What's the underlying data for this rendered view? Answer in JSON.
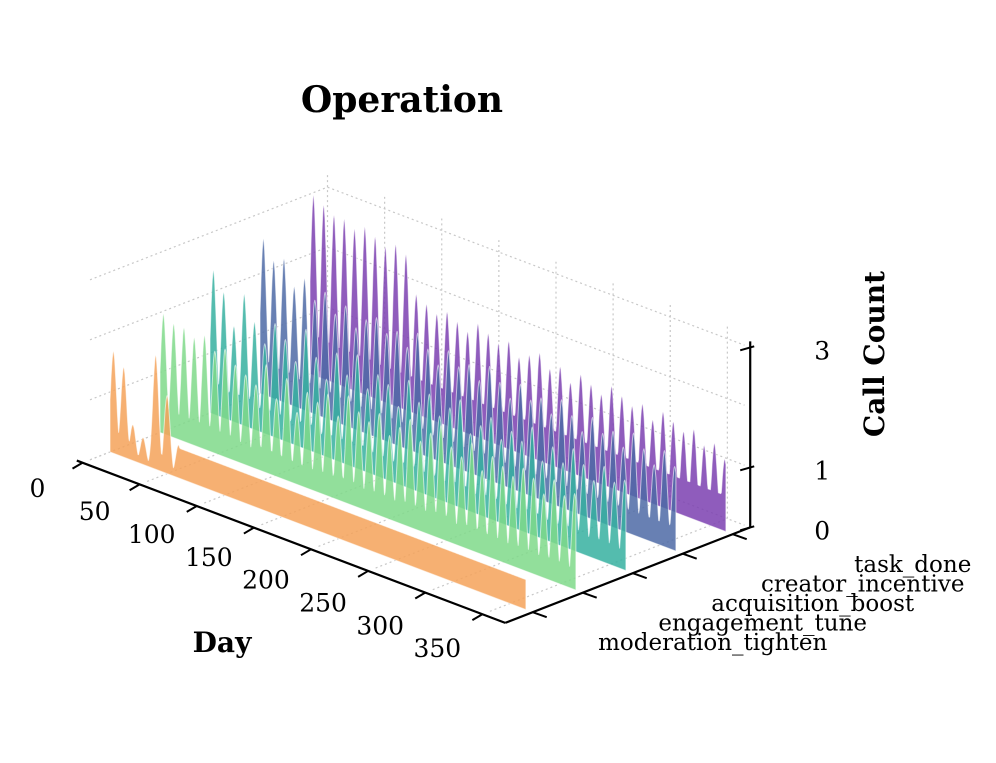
{
  "chart_data": {
    "type": "3d-ridgeline-area",
    "title": "Operation",
    "xlabel": "Day",
    "zlabel": "Call Count",
    "xlim": [
      0,
      365
    ],
    "zlim": [
      0,
      3
    ],
    "x_ticks": [
      0,
      50,
      100,
      150,
      200,
      250,
      300,
      350
    ],
    "z_ticks": [
      0,
      1,
      3
    ],
    "categories": [
      "moderation_tighten",
      "engagement_tune",
      "acquisition_boost",
      "creator_incentive",
      "task_done"
    ],
    "series": [
      {
        "name": "moderation_tighten",
        "color": "#f4a259",
        "peaks": [
          {
            "day": 3,
            "value": 1.7
          },
          {
            "day": 12,
            "value": 1.5
          },
          {
            "day": 20,
            "value": 0.6
          },
          {
            "day": 29,
            "value": 0.45
          },
          {
            "day": 40,
            "value": 1.9
          },
          {
            "day": 50,
            "value": 1.3
          },
          {
            "day": 60,
            "value": 0.55
          }
        ],
        "baseline_after": {
          "from_day": 60,
          "to_day": 364,
          "value": 0.5
        }
      },
      {
        "name": "engagement_tune",
        "color": "#7fd98a",
        "peak_days_start": 3,
        "peak_days_step": 9,
        "peak_days_end": 363,
        "peak_values": [
          2.0,
          1.9,
          1.9,
          1.8,
          1.9,
          1.7,
          1.8,
          1.6,
          1.5,
          1.4,
          1.8,
          1.3,
          1.7,
          1.2,
          1.6,
          1.5,
          1.7,
          1.4,
          1.8,
          1.6,
          1.5,
          1.7,
          1.4,
          1.6,
          1.8,
          1.5,
          1.7,
          1.9,
          1.6,
          1.5,
          1.8,
          1.4,
          1.7,
          1.6,
          1.5,
          1.7,
          1.6,
          1.4,
          1.7,
          1.5,
          1.6
        ],
        "baseline": 0.3
      },
      {
        "name": "acquisition_boost",
        "color": "#36b0a0",
        "peak_days_start": 3,
        "peak_days_step": 9,
        "peak_days_end": 363,
        "peak_values": [
          2.4,
          2.1,
          1.6,
          2.2,
          1.8,
          1.5,
          1.9,
          1.7,
          1.4,
          2.0,
          1.6,
          1.3,
          1.8,
          1.5,
          1.9,
          1.4,
          1.7,
          1.6,
          1.3,
          1.8,
          1.5,
          1.7,
          1.4,
          1.6,
          1.8,
          1.3,
          1.5,
          1.7,
          1.4,
          1.6,
          1.5,
          1.8,
          1.3,
          1.6,
          1.4,
          1.7,
          1.5,
          1.3,
          1.6,
          1.4,
          1.5
        ],
        "baseline": 0.3
      },
      {
        "name": "creator_incentive",
        "color": "#4e6aa6",
        "peak_days_start": 3,
        "peak_days_step": 9,
        "peak_days_end": 363,
        "peak_values": [
          2.6,
          2.3,
          2.4,
          2.0,
          2.2,
          1.9,
          2.1,
          1.8,
          2.0,
          1.7,
          1.9,
          2.0,
          1.8,
          1.9,
          1.7,
          2.0,
          1.8,
          1.6,
          1.9,
          1.7,
          1.8,
          1.6,
          1.9,
          1.7,
          1.5,
          1.8,
          1.6,
          1.7,
          1.5,
          1.8,
          1.6,
          1.4,
          1.7,
          1.5,
          1.6,
          1.4,
          1.7,
          1.5,
          1.3,
          1.6,
          1.4
        ],
        "baseline": 0.4
      },
      {
        "name": "task_done",
        "color": "#7b3fb0",
        "peak_days_start": 3,
        "peak_days_step": 9,
        "peak_days_end": 363,
        "peak_values": [
          3.0,
          2.9,
          2.8,
          2.8,
          2.7,
          2.8,
          2.7,
          2.6,
          2.7,
          2.6,
          2.0,
          1.9,
          1.8,
          1.9,
          1.8,
          1.7,
          1.9,
          1.8,
          1.7,
          1.8,
          1.6,
          1.7,
          1.8,
          1.6,
          1.7,
          1.5,
          1.7,
          1.6,
          1.5,
          1.7,
          1.6,
          1.5,
          1.6,
          1.4,
          1.6,
          1.5,
          1.4,
          1.5,
          1.3,
          1.4,
          1.2
        ],
        "baseline": 0.6
      }
    ]
  }
}
